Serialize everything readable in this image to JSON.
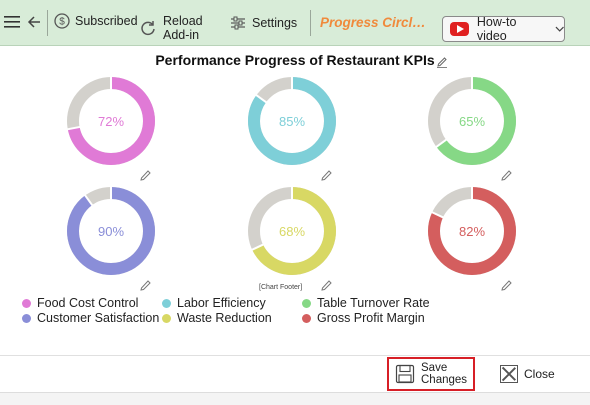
{
  "toolbar": {
    "subscribed_label": "Subscribed",
    "reload_label_line1": "Reload",
    "reload_label_line2": "Add-in",
    "settings_label": "Settings",
    "brand_title": "Progress Circle C...",
    "howto_label": "How-to video",
    "icons": [
      "menu-icon",
      "back-icon",
      "dollar-icon",
      "reload-icon",
      "sliders-icon",
      "youtube-icon",
      "chevron-down-icon"
    ]
  },
  "chart_footer": "[Chart Footer]",
  "colors": {
    "track": "#d3d1cc",
    "food": "#e07ad6",
    "labor": "#7ecfd8",
    "table": "#86d886",
    "customer": "#8a8ed8",
    "waste": "#d8d864",
    "gross": "#d45e5e",
    "save_border": "#d71f26",
    "toolbar_bg": "#d8ecd8",
    "brand": "#f08a3c"
  },
  "chart_data": {
    "type": "donut",
    "title": "Performance Progress of Restaurant KPIs",
    "series": [
      {
        "name": "Food Cost Control",
        "value": 72,
        "label": "72%",
        "color": "#e07ad6"
      },
      {
        "name": "Labor Efficiency",
        "value": 85,
        "label": "85%",
        "color": "#7ecfd8"
      },
      {
        "name": "Table Turnover Rate",
        "value": 65,
        "label": "65%",
        "color": "#86d886"
      },
      {
        "name": "Customer Satisfaction",
        "value": 90,
        "label": "90%",
        "color": "#8a8ed8"
      },
      {
        "name": "Waste Reduction",
        "value": 68,
        "label": "68%",
        "color": "#d8d864"
      },
      {
        "name": "Gross Profit Margin",
        "value": 82,
        "label": "82%",
        "color": "#d45e5e"
      }
    ],
    "legend_position": "bottom-left"
  },
  "actions": {
    "save_line1": "Save",
    "save_line2": "Changes",
    "close_label": "Close"
  }
}
